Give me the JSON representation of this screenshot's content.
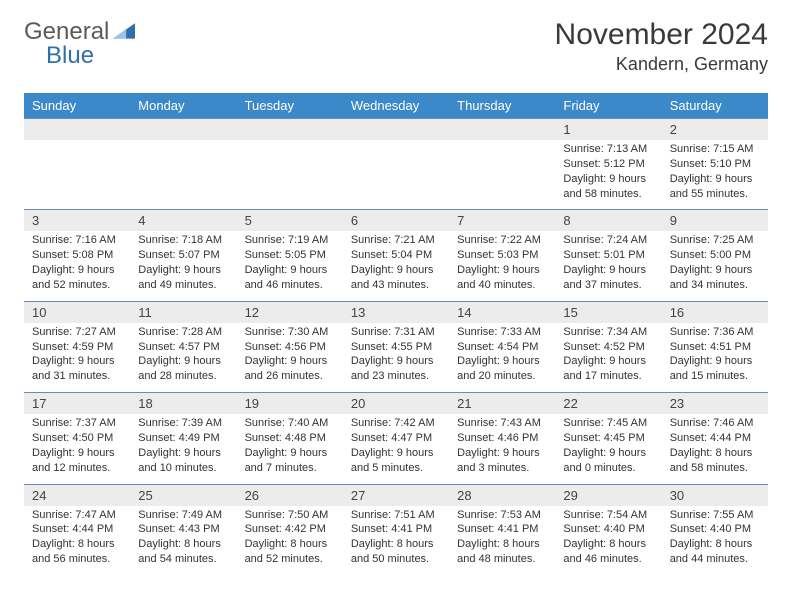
{
  "logo": {
    "word1": "General",
    "word2": "Blue",
    "triangle_color": "#2f6fab"
  },
  "title": "November 2024",
  "location": "Kandern, Germany",
  "header_bg": "#3b89c9",
  "num_bg": "#ececec",
  "border_color": "#6a8db5",
  "weekdays": [
    "Sunday",
    "Monday",
    "Tuesday",
    "Wednesday",
    "Thursday",
    "Friday",
    "Saturday"
  ],
  "weeks": [
    {
      "days": [
        {
          "num": "",
          "lines": [
            "",
            "",
            "",
            ""
          ]
        },
        {
          "num": "",
          "lines": [
            "",
            "",
            "",
            ""
          ]
        },
        {
          "num": "",
          "lines": [
            "",
            "",
            "",
            ""
          ]
        },
        {
          "num": "",
          "lines": [
            "",
            "",
            "",
            ""
          ]
        },
        {
          "num": "",
          "lines": [
            "",
            "",
            "",
            ""
          ]
        },
        {
          "num": "1",
          "lines": [
            "Sunrise: 7:13 AM",
            "Sunset: 5:12 PM",
            "Daylight: 9 hours",
            "and 58 minutes."
          ]
        },
        {
          "num": "2",
          "lines": [
            "Sunrise: 7:15 AM",
            "Sunset: 5:10 PM",
            "Daylight: 9 hours",
            "and 55 minutes."
          ]
        }
      ]
    },
    {
      "days": [
        {
          "num": "3",
          "lines": [
            "Sunrise: 7:16 AM",
            "Sunset: 5:08 PM",
            "Daylight: 9 hours",
            "and 52 minutes."
          ]
        },
        {
          "num": "4",
          "lines": [
            "Sunrise: 7:18 AM",
            "Sunset: 5:07 PM",
            "Daylight: 9 hours",
            "and 49 minutes."
          ]
        },
        {
          "num": "5",
          "lines": [
            "Sunrise: 7:19 AM",
            "Sunset: 5:05 PM",
            "Daylight: 9 hours",
            "and 46 minutes."
          ]
        },
        {
          "num": "6",
          "lines": [
            "Sunrise: 7:21 AM",
            "Sunset: 5:04 PM",
            "Daylight: 9 hours",
            "and 43 minutes."
          ]
        },
        {
          "num": "7",
          "lines": [
            "Sunrise: 7:22 AM",
            "Sunset: 5:03 PM",
            "Daylight: 9 hours",
            "and 40 minutes."
          ]
        },
        {
          "num": "8",
          "lines": [
            "Sunrise: 7:24 AM",
            "Sunset: 5:01 PM",
            "Daylight: 9 hours",
            "and 37 minutes."
          ]
        },
        {
          "num": "9",
          "lines": [
            "Sunrise: 7:25 AM",
            "Sunset: 5:00 PM",
            "Daylight: 9 hours",
            "and 34 minutes."
          ]
        }
      ]
    },
    {
      "days": [
        {
          "num": "10",
          "lines": [
            "Sunrise: 7:27 AM",
            "Sunset: 4:59 PM",
            "Daylight: 9 hours",
            "and 31 minutes."
          ]
        },
        {
          "num": "11",
          "lines": [
            "Sunrise: 7:28 AM",
            "Sunset: 4:57 PM",
            "Daylight: 9 hours",
            "and 28 minutes."
          ]
        },
        {
          "num": "12",
          "lines": [
            "Sunrise: 7:30 AM",
            "Sunset: 4:56 PM",
            "Daylight: 9 hours",
            "and 26 minutes."
          ]
        },
        {
          "num": "13",
          "lines": [
            "Sunrise: 7:31 AM",
            "Sunset: 4:55 PM",
            "Daylight: 9 hours",
            "and 23 minutes."
          ]
        },
        {
          "num": "14",
          "lines": [
            "Sunrise: 7:33 AM",
            "Sunset: 4:54 PM",
            "Daylight: 9 hours",
            "and 20 minutes."
          ]
        },
        {
          "num": "15",
          "lines": [
            "Sunrise: 7:34 AM",
            "Sunset: 4:52 PM",
            "Daylight: 9 hours",
            "and 17 minutes."
          ]
        },
        {
          "num": "16",
          "lines": [
            "Sunrise: 7:36 AM",
            "Sunset: 4:51 PM",
            "Daylight: 9 hours",
            "and 15 minutes."
          ]
        }
      ]
    },
    {
      "days": [
        {
          "num": "17",
          "lines": [
            "Sunrise: 7:37 AM",
            "Sunset: 4:50 PM",
            "Daylight: 9 hours",
            "and 12 minutes."
          ]
        },
        {
          "num": "18",
          "lines": [
            "Sunrise: 7:39 AM",
            "Sunset: 4:49 PM",
            "Daylight: 9 hours",
            "and 10 minutes."
          ]
        },
        {
          "num": "19",
          "lines": [
            "Sunrise: 7:40 AM",
            "Sunset: 4:48 PM",
            "Daylight: 9 hours",
            "and 7 minutes."
          ]
        },
        {
          "num": "20",
          "lines": [
            "Sunrise: 7:42 AM",
            "Sunset: 4:47 PM",
            "Daylight: 9 hours",
            "and 5 minutes."
          ]
        },
        {
          "num": "21",
          "lines": [
            "Sunrise: 7:43 AM",
            "Sunset: 4:46 PM",
            "Daylight: 9 hours",
            "and 3 minutes."
          ]
        },
        {
          "num": "22",
          "lines": [
            "Sunrise: 7:45 AM",
            "Sunset: 4:45 PM",
            "Daylight: 9 hours",
            "and 0 minutes."
          ]
        },
        {
          "num": "23",
          "lines": [
            "Sunrise: 7:46 AM",
            "Sunset: 4:44 PM",
            "Daylight: 8 hours",
            "and 58 minutes."
          ]
        }
      ]
    },
    {
      "days": [
        {
          "num": "24",
          "lines": [
            "Sunrise: 7:47 AM",
            "Sunset: 4:44 PM",
            "Daylight: 8 hours",
            "and 56 minutes."
          ]
        },
        {
          "num": "25",
          "lines": [
            "Sunrise: 7:49 AM",
            "Sunset: 4:43 PM",
            "Daylight: 8 hours",
            "and 54 minutes."
          ]
        },
        {
          "num": "26",
          "lines": [
            "Sunrise: 7:50 AM",
            "Sunset: 4:42 PM",
            "Daylight: 8 hours",
            "and 52 minutes."
          ]
        },
        {
          "num": "27",
          "lines": [
            "Sunrise: 7:51 AM",
            "Sunset: 4:41 PM",
            "Daylight: 8 hours",
            "and 50 minutes."
          ]
        },
        {
          "num": "28",
          "lines": [
            "Sunrise: 7:53 AM",
            "Sunset: 4:41 PM",
            "Daylight: 8 hours",
            "and 48 minutes."
          ]
        },
        {
          "num": "29",
          "lines": [
            "Sunrise: 7:54 AM",
            "Sunset: 4:40 PM",
            "Daylight: 8 hours",
            "and 46 minutes."
          ]
        },
        {
          "num": "30",
          "lines": [
            "Sunrise: 7:55 AM",
            "Sunset: 4:40 PM",
            "Daylight: 8 hours",
            "and 44 minutes."
          ]
        }
      ]
    }
  ]
}
